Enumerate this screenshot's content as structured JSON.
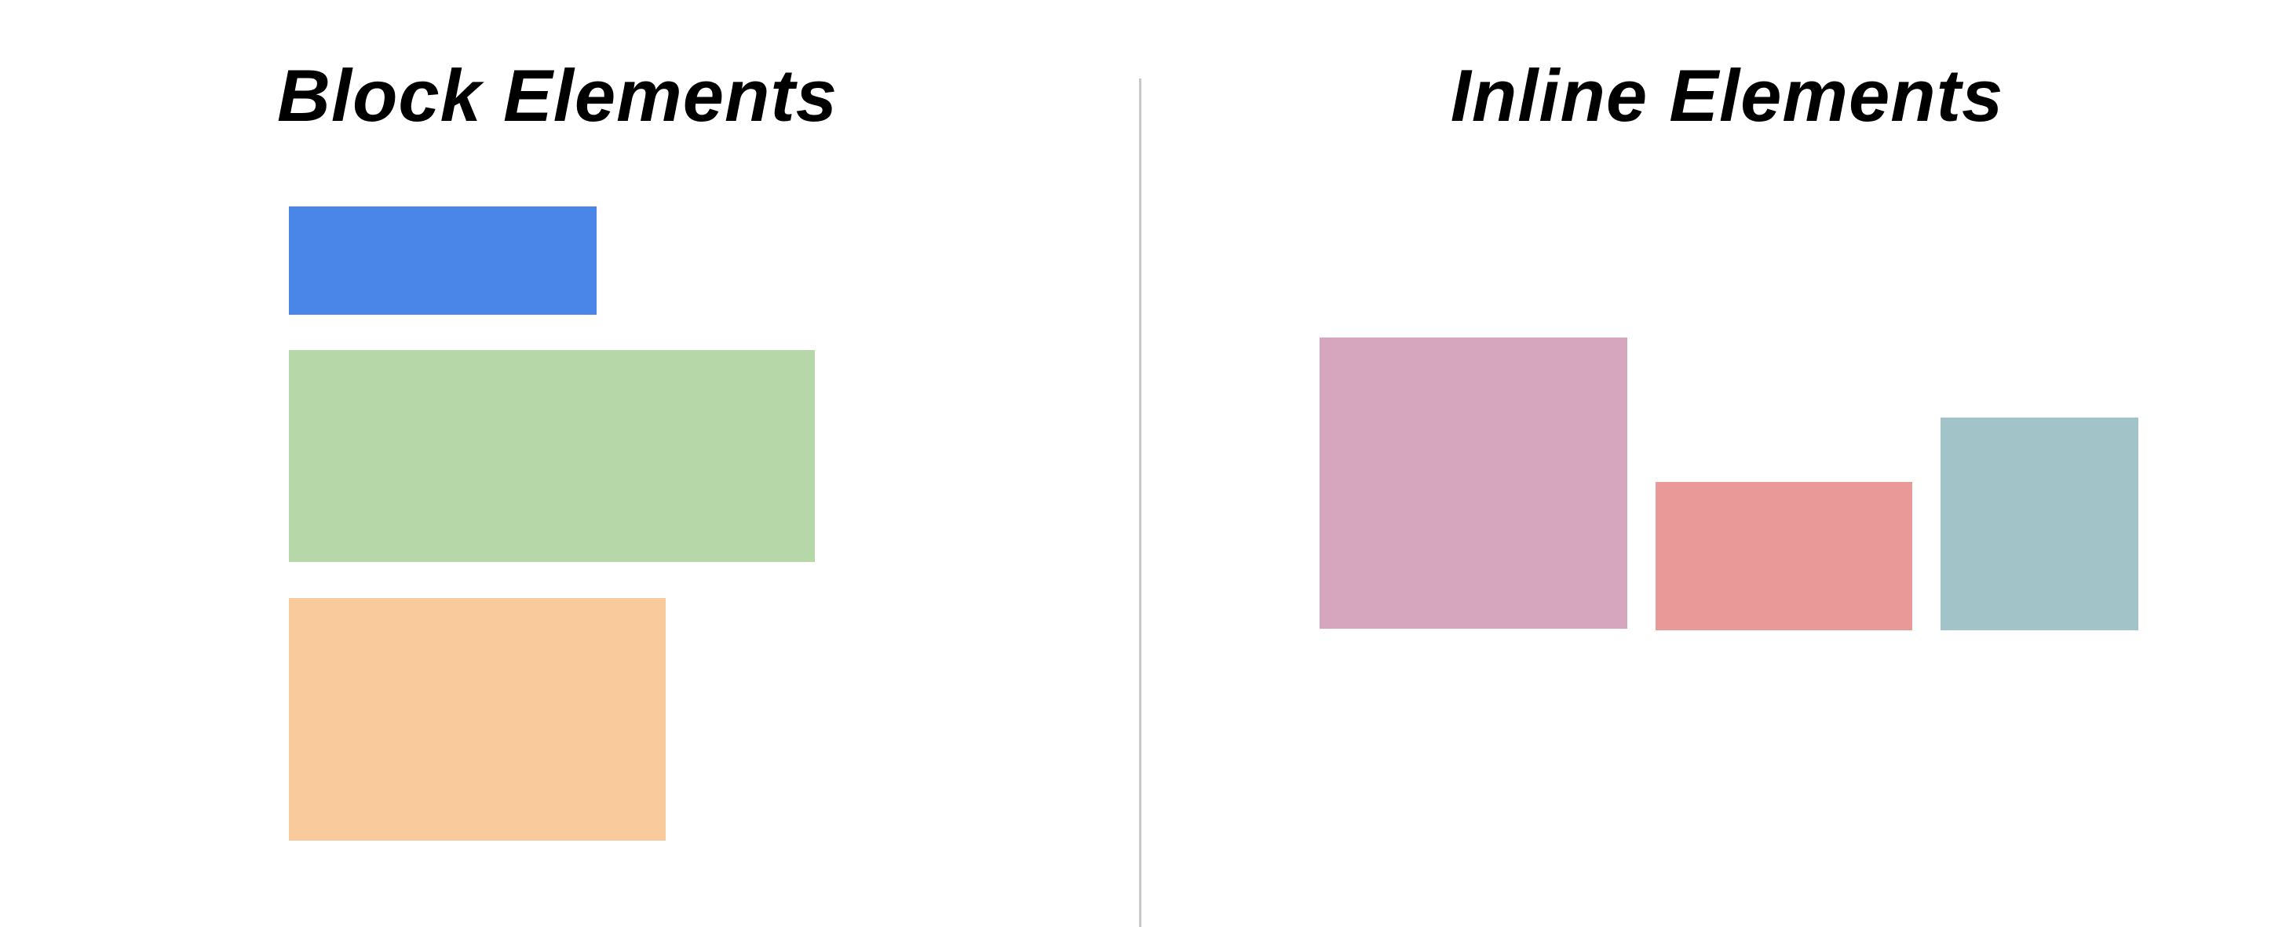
{
  "block_section": {
    "title": "Block Elements",
    "boxes": [
      {
        "color": "#4a86e8"
      },
      {
        "color": "#b6d7a8"
      },
      {
        "color": "#f9cb9c"
      }
    ]
  },
  "inline_section": {
    "title": "Inline Elements",
    "boxes": [
      {
        "color": "#d5a6bd"
      },
      {
        "color": "#ea9999"
      },
      {
        "color": "#a2c4c9"
      }
    ]
  },
  "divider": {
    "color": "#c8c8c8"
  }
}
